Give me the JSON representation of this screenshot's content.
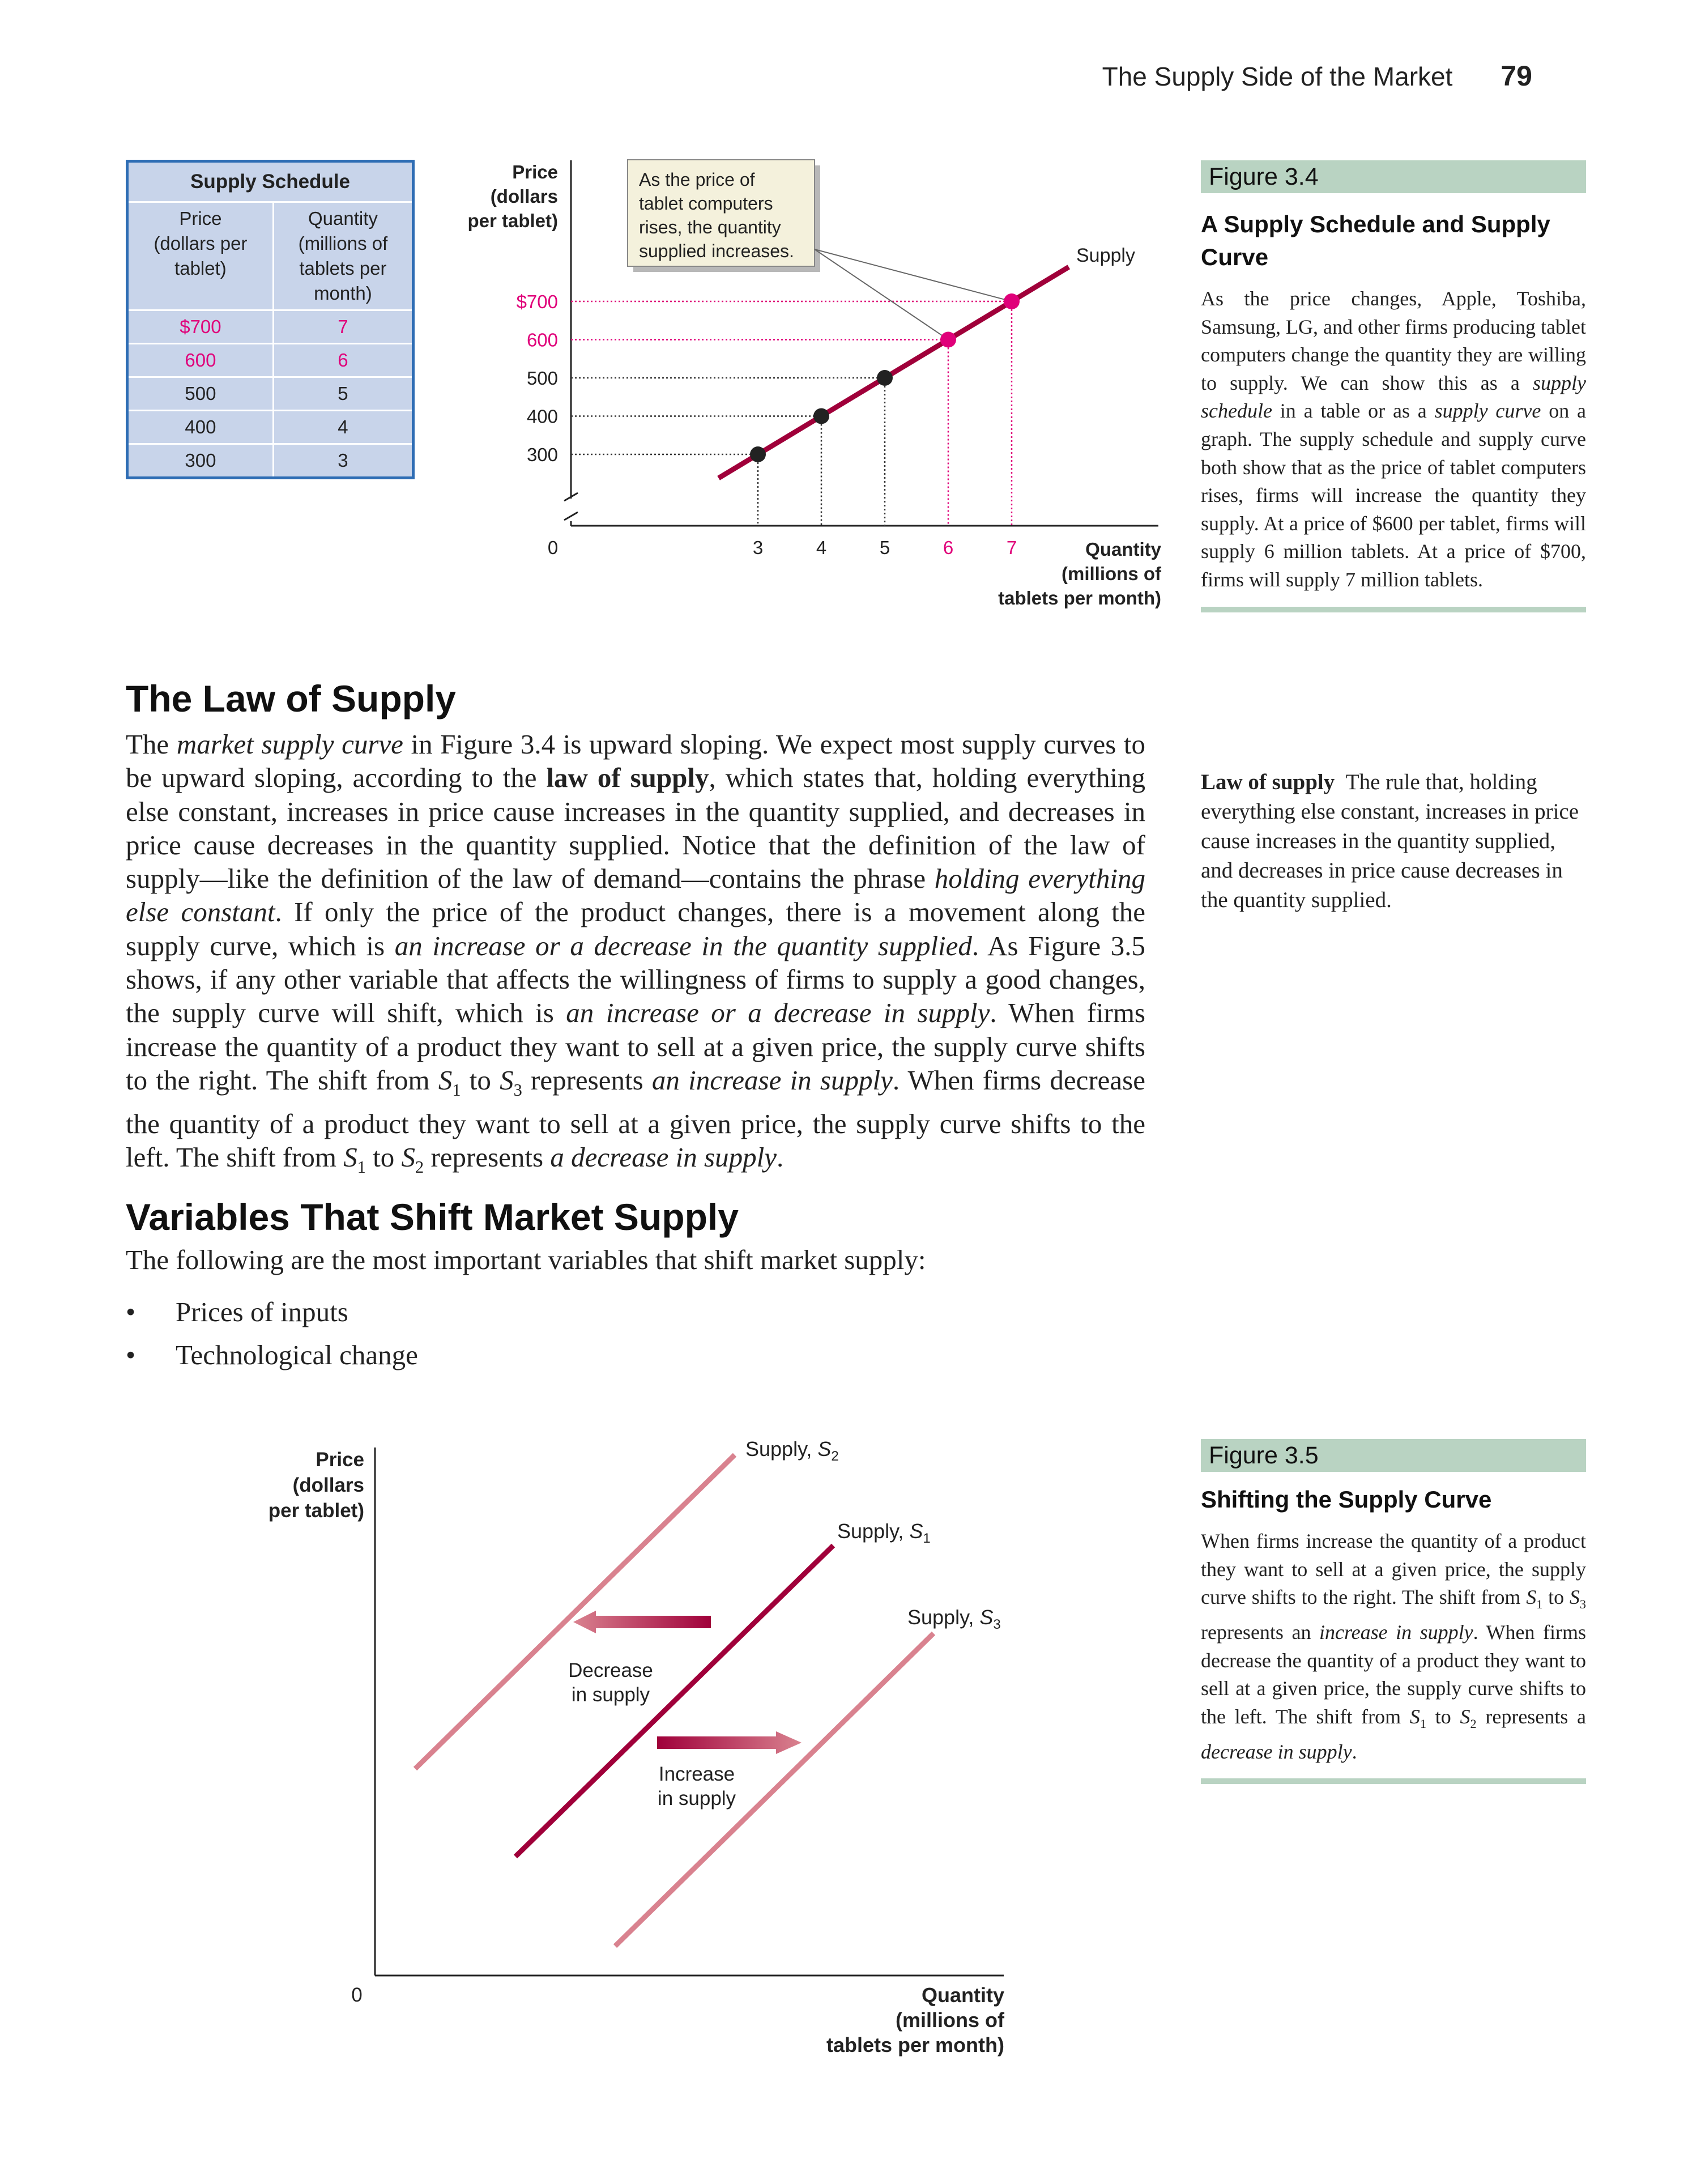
{
  "header": {
    "title": "The Supply Side of the Market",
    "page_number": "79"
  },
  "supply_schedule": {
    "caption": "Supply Schedule",
    "col_price": [
      "Price",
      "(dollars per",
      "tablet)"
    ],
    "col_quantity": [
      "Quantity",
      "(millions of",
      "tablets per",
      "month)"
    ],
    "rows": [
      {
        "price": "$700",
        "quantity": "7"
      },
      {
        "price": "600",
        "quantity": "6"
      },
      {
        "price": "500",
        "quantity": "5"
      },
      {
        "price": "400",
        "quantity": "4"
      },
      {
        "price": "300",
        "quantity": "3"
      }
    ]
  },
  "figure_3_4": {
    "label": "Figure 3.4",
    "title": "A Supply Schedule and Supply Curve",
    "caption": [
      {
        "t": "As the price changes, Apple, Toshiba, Samsung, LG, and other firms producing tablet computers change the quantity they are willing to supply. We can show this as a "
      },
      {
        "t": "supply schedule",
        "i": true
      },
      {
        "t": " in a table or as a "
      },
      {
        "t": "supply curve",
        "i": true
      },
      {
        "t": " on a graph. The supply schedule and supply curve both show that as the price of tablet computers rises, firms will increase the quantity they supply. At a price of $600 per tablet, firms will supply 6 million tablets. At a price of $700, firms will supply 7 million tablets."
      }
    ],
    "chart": {
      "y_label": [
        "Price",
        "(dollars",
        "per tablet)"
      ],
      "x_label": [
        "Quantity",
        "(millions of",
        "tablets per month)"
      ],
      "origin": "0",
      "curve_label": "Supply",
      "callout": [
        "As the price of",
        "tablet computers",
        "rises, the quantity",
        "supplied increases."
      ],
      "highlight_color": "#e0007a",
      "curve_color": "#a0003a"
    }
  },
  "chart_data": [
    {
      "type": "line",
      "title": "",
      "xlabel": "Quantity (millions of tablets per month)",
      "ylabel": "Price (dollars per tablet)",
      "series": [
        {
          "name": "Supply",
          "x": [
            3,
            4,
            5,
            6,
            7
          ],
          "y": [
            300,
            400,
            500,
            600,
            700
          ]
        }
      ],
      "y_ticks": [
        "$700",
        "600",
        "500",
        "400",
        "300"
      ],
      "x_ticks": [
        "3",
        "4",
        "5",
        "6",
        "7"
      ],
      "highlighted_points": [
        {
          "x": 6,
          "y": 600
        },
        {
          "x": 7,
          "y": 700
        }
      ],
      "axis_break": true,
      "grid": false
    },
    {
      "type": "line",
      "title": "",
      "xlabel": "Quantity (millions of tablets per month)",
      "ylabel": "Price (dollars per tablet)",
      "series": [
        {
          "name": "Supply, S2"
        },
        {
          "name": "Supply, S1"
        },
        {
          "name": "Supply, S3"
        }
      ],
      "annotations": [
        "Decrease in supply",
        "Increase in supply"
      ],
      "numeric_values_shown": false
    }
  ],
  "law_of_supply": {
    "heading": "The Law of Supply",
    "paragraph": [
      {
        "t": "The "
      },
      {
        "t": "market supply curve",
        "i": true
      },
      {
        "t": " in Figure 3.4 is upward sloping. We expect most supply curves to be upward sloping, according to the "
      },
      {
        "t": "law of supply",
        "b": true
      },
      {
        "t": ", which states that, holding everything else constant, increases in price cause increases in the quantity supplied, and decreases in price cause decreases in the quantity supplied. Notice that the definition of the law of supply—like the definition of the law of demand—contains the phrase "
      },
      {
        "t": "holding everything else constant",
        "i": true
      },
      {
        "t": ". If only the price of the product changes, there is a movement along the supply curve, which is "
      },
      {
        "t": "an increase or a decrease in the quantity supplied",
        "i": true
      },
      {
        "t": ". As Figure 3.5 shows, if any other variable that affects the willingness of firms to supply a good changes, the supply curve will shift, which is "
      },
      {
        "t": "an increase or a decrease in supply",
        "i": true
      },
      {
        "t": ". When firms increase the quantity of a product they want to sell at a given price, the supply curve shifts to the right. The shift from "
      },
      {
        "t": "S",
        "i": true
      },
      {
        "t": "1",
        "sub": true
      },
      {
        "t": " to "
      },
      {
        "t": "S",
        "i": true
      },
      {
        "t": "3",
        "sub": true
      },
      {
        "t": " represents "
      },
      {
        "t": "an increase in supply",
        "i": true
      },
      {
        "t": ". When firms decrease the quantity of a product they want to sell at a given price, the supply curve shifts to the left. The shift from "
      },
      {
        "t": "S",
        "i": true
      },
      {
        "t": "1",
        "sub": true
      },
      {
        "t": " to "
      },
      {
        "t": "S",
        "i": true
      },
      {
        "t": "2",
        "sub": true
      },
      {
        "t": " represents "
      },
      {
        "t": "a decrease in supply",
        "i": true
      },
      {
        "t": "."
      }
    ]
  },
  "margin_definition": {
    "term": "Law of supply",
    "definition": "The rule that, holding everything else constant, increases in price cause increases in the quantity supplied, and decreases in price cause decreases in the quantity supplied."
  },
  "variables_section": {
    "heading": "Variables That Shift Market Supply",
    "intro": "The following are the most important variables that shift market supply:",
    "bullets": [
      "Prices of inputs",
      "Technological change"
    ]
  },
  "figure_3_5": {
    "label": "Figure 3.5",
    "title": "Shifting the Supply Curve",
    "caption": [
      {
        "t": "When firms increase the quantity of a product they want to sell at a given price, the supply curve shifts to the right. The shift from "
      },
      {
        "t": "S",
        "i": true
      },
      {
        "t": "1",
        "sub": true
      },
      {
        "t": " to "
      },
      {
        "t": "S",
        "i": true
      },
      {
        "t": "3",
        "sub": true
      },
      {
        "t": " represents an "
      },
      {
        "t": "increase in supply",
        "i": true
      },
      {
        "t": ". When firms decrease the quantity of a product they want to sell at a given price, the supply curve shifts to the left. The shift from "
      },
      {
        "t": "S",
        "i": true
      },
      {
        "t": "1",
        "sub": true
      },
      {
        "t": " to "
      },
      {
        "t": "S",
        "i": true
      },
      {
        "t": "2",
        "sub": true
      },
      {
        "t": " represents a "
      },
      {
        "t": "decrease in supply",
        "i": true
      },
      {
        "t": "."
      }
    ],
    "chart": {
      "y_label": [
        "Price",
        "(dollars",
        "per tablet)"
      ],
      "x_label": [
        "Quantity",
        "(millions of",
        "tablets per month)"
      ],
      "origin": "0",
      "s2_label": "Supply, ",
      "s2_sym": "S",
      "s2_sub": "2",
      "s1_label": "Supply, ",
      "s1_sym": "S",
      "s1_sub": "1",
      "s3_label": "Supply, ",
      "s3_sym": "S",
      "s3_sub": "3",
      "decrease_label": [
        "Decrease",
        "in supply"
      ],
      "increase_label": [
        "Increase",
        "in supply"
      ],
      "s1_color": "#a0003a",
      "shifted_color": "#d9828f"
    }
  }
}
